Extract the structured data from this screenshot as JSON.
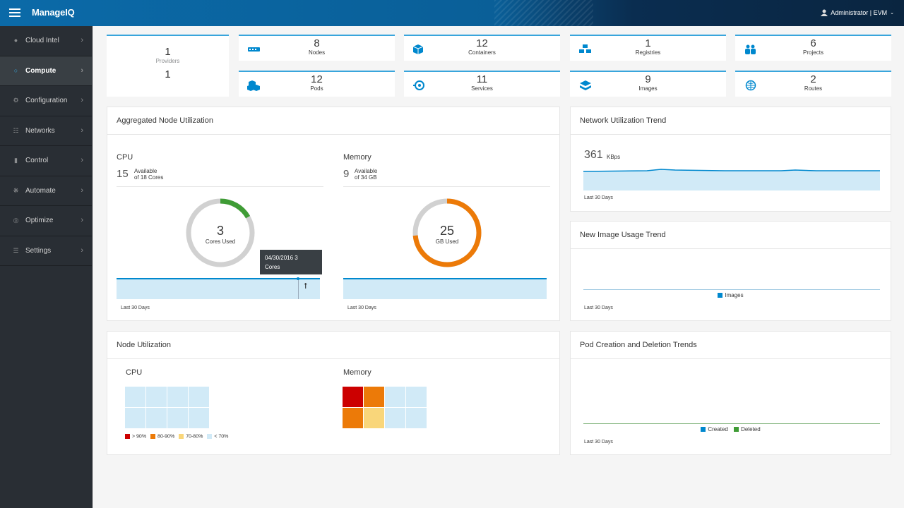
{
  "header": {
    "brand": "ManageIQ",
    "user": "Administrator | EVM"
  },
  "sidebar": {
    "items": [
      {
        "label": "Cloud Intel",
        "icon": "cloud-intel-icon"
      },
      {
        "label": "Compute",
        "icon": "compute-icon",
        "active": true
      },
      {
        "label": "Configuration",
        "icon": "configuration-icon"
      },
      {
        "label": "Networks",
        "icon": "networks-icon"
      },
      {
        "label": "Control",
        "icon": "control-icon"
      },
      {
        "label": "Automate",
        "icon": "automate-icon"
      },
      {
        "label": "Optimize",
        "icon": "optimize-icon"
      },
      {
        "label": "Settings",
        "icon": "settings-icon"
      }
    ]
  },
  "providers": {
    "count": "1",
    "label": "Providers",
    "sub": "1"
  },
  "stats": [
    {
      "value": "8",
      "label": "Nodes",
      "icon": "nodes-icon"
    },
    {
      "value": "12",
      "label": "Containers",
      "icon": "containers-icon"
    },
    {
      "value": "1",
      "label": "Registries",
      "icon": "registries-icon"
    },
    {
      "value": "6",
      "label": "Projects",
      "icon": "projects-icon"
    },
    {
      "value": "12",
      "label": "Pods",
      "icon": "pods-icon"
    },
    {
      "value": "11",
      "label": "Services",
      "icon": "services-icon"
    },
    {
      "value": "9",
      "label": "Images",
      "icon": "images-icon"
    },
    {
      "value": "2",
      "label": "Routes",
      "icon": "routes-icon"
    }
  ],
  "aggregated": {
    "title": "Aggregated Node Utilization",
    "cpu": {
      "label": "CPU",
      "available": "15",
      "available_text": "Available",
      "of_text": "of 18 Cores",
      "used": "3",
      "used_label": "Cores Used",
      "used_fraction": 0.167,
      "footer": "Last 30 Days"
    },
    "memory": {
      "label": "Memory",
      "available": "9",
      "available_text": "Available",
      "of_text": "of 34 GB",
      "used": "25",
      "used_label": "GB Used",
      "used_fraction": 0.735,
      "footer": "Last 30 Days"
    },
    "tooltip": {
      "line1": "04/30/2016 3",
      "line2": "Cores"
    }
  },
  "network": {
    "title": "Network Utilization Trend",
    "value": "361",
    "unit": "KBps",
    "footer": "Last 30 Days"
  },
  "image_trend": {
    "title": "New Image Usage Trend",
    "legend": "Images",
    "footer": "Last 30 Days"
  },
  "node_util": {
    "title": "Node Utilization",
    "cpu_label": "CPU",
    "memory_label": "Memory",
    "legend": [
      {
        "label": "> 90%",
        "color": "#cc0000"
      },
      {
        "label": "80-90%",
        "color": "#ec7a08"
      },
      {
        "label": "70-80%",
        "color": "#f9d67a"
      },
      {
        "label": "< 70%",
        "color": "#d1eaf7"
      }
    ],
    "cpu_cells": [
      "#d1eaf7",
      "#d1eaf7",
      "#d1eaf7",
      "#d1eaf7",
      "#d1eaf7",
      "#d1eaf7",
      "#d1eaf7",
      "#d1eaf7"
    ],
    "mem_cells": [
      "#cc0000",
      "#ec7a08",
      "#d1eaf7",
      "#d1eaf7",
      "#ec7a08",
      "#f9d67a",
      "#d1eaf7",
      "#d1eaf7"
    ]
  },
  "pod_trend": {
    "title": "Pod Creation and Deletion Trends",
    "legend_created": "Created",
    "legend_deleted": "Deleted",
    "footer": "Last 30 Days"
  },
  "colors": {
    "accent": "#39a5dc",
    "orange": "#ec7a08",
    "green": "#3f9c35",
    "donut_bg": "#d1d1d1"
  }
}
